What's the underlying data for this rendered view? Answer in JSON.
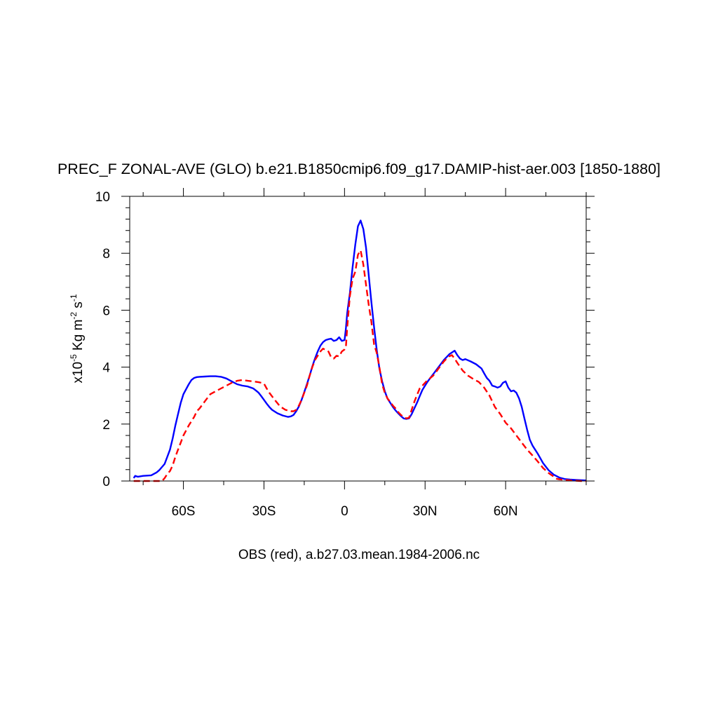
{
  "chart_data": {
    "type": "line",
    "title": "PREC_F ZONAL-AVE (GLO) b.e21.B1850cmip6.f09_g17.DAMIP-hist-aer.003 [1850-1880]",
    "xlabel": "OBS (red), a.b27.03.mean.1984-2006.nc",
    "ylabel": {
      "prefix": "x10",
      "exp1": "-5",
      "unit_a": " Kg m",
      "exp2": "-2",
      "unit_b": " s",
      "exp3": "-1"
    },
    "xlim": [
      -80,
      90
    ],
    "ylim": [
      0,
      10
    ],
    "x_ticks": [
      {
        "value": -60,
        "label": "60S"
      },
      {
        "value": -30,
        "label": "30S"
      },
      {
        "value": 0,
        "label": "0"
      },
      {
        "value": 30,
        "label": "30N"
      },
      {
        "value": 60,
        "label": "60N"
      }
    ],
    "y_ticks": [
      {
        "value": 0,
        "label": "0"
      },
      {
        "value": 2,
        "label": "2"
      },
      {
        "value": 4,
        "label": "4"
      },
      {
        "value": 6,
        "label": "6"
      },
      {
        "value": 8,
        "label": "8"
      },
      {
        "value": 10,
        "label": "10"
      }
    ],
    "grid": false,
    "legend": "none",
    "series": [
      {
        "color": "#0000ff",
        "style": "solid",
        "x": [
          -78.5,
          -78,
          -77,
          -75,
          -72,
          -70,
          -69,
          -67,
          -66,
          -65,
          -64,
          -63,
          -62,
          -61,
          -60,
          -58,
          -57,
          -56,
          -55,
          -54,
          -52,
          -50,
          -48,
          -46,
          -44,
          -42,
          -40,
          -38,
          -36,
          -34,
          -33,
          -32,
          -31,
          -30,
          -29,
          -28,
          -27,
          -25,
          -23,
          -21,
          -20,
          -19,
          -18,
          -17,
          -16,
          -15,
          -14,
          -13,
          -12,
          -11,
          -10,
          -9,
          -8,
          -7,
          -6,
          -5,
          -4,
          -3,
          -2,
          -1,
          0,
          0.5,
          1,
          2,
          3,
          4,
          5,
          6,
          7,
          8,
          9,
          10,
          11,
          12,
          13,
          14,
          15,
          16,
          17,
          18,
          19,
          20,
          21,
          22,
          23,
          24,
          25,
          26,
          27,
          28,
          29,
          30,
          31,
          33,
          35,
          37,
          39,
          41,
          42,
          43,
          44,
          45,
          47,
          49,
          51,
          52,
          53,
          54,
          55,
          56,
          57,
          58,
          59,
          60,
          61,
          62,
          63,
          64,
          65,
          66,
          67,
          68,
          69,
          70,
          72,
          74,
          76,
          78,
          80,
          82,
          84,
          86,
          88,
          90
        ],
        "y": [
          0.1,
          0.18,
          0.15,
          0.18,
          0.2,
          0.3,
          0.38,
          0.6,
          0.85,
          1.1,
          1.5,
          1.95,
          2.35,
          2.75,
          3.05,
          3.4,
          3.55,
          3.62,
          3.65,
          3.66,
          3.67,
          3.68,
          3.68,
          3.66,
          3.6,
          3.5,
          3.4,
          3.35,
          3.32,
          3.25,
          3.18,
          3.1,
          2.98,
          2.85,
          2.72,
          2.6,
          2.5,
          2.38,
          2.3,
          2.25,
          2.27,
          2.32,
          2.45,
          2.62,
          2.85,
          3.12,
          3.4,
          3.7,
          4.02,
          4.3,
          4.55,
          4.75,
          4.88,
          4.95,
          4.98,
          5.0,
          4.92,
          4.95,
          5.05,
          4.92,
          4.95,
          5.35,
          5.9,
          6.6,
          7.5,
          8.3,
          8.95,
          9.15,
          8.85,
          8.2,
          7.25,
          6.3,
          5.4,
          4.6,
          3.95,
          3.5,
          3.15,
          2.9,
          2.75,
          2.6,
          2.48,
          2.38,
          2.28,
          2.2,
          2.18,
          2.2,
          2.35,
          2.55,
          2.75,
          2.98,
          3.2,
          3.35,
          3.5,
          3.75,
          4.0,
          4.25,
          4.45,
          4.58,
          4.42,
          4.3,
          4.25,
          4.28,
          4.2,
          4.1,
          3.95,
          3.78,
          3.62,
          3.52,
          3.35,
          3.32,
          3.28,
          3.32,
          3.45,
          3.5,
          3.28,
          3.15,
          3.18,
          3.1,
          2.9,
          2.6,
          2.2,
          1.8,
          1.45,
          1.25,
          0.95,
          0.62,
          0.38,
          0.22,
          0.12,
          0.07,
          0.05,
          0.04,
          0.03,
          0.02
        ]
      },
      {
        "color": "#ff0000",
        "style": "dashed",
        "x": [
          -78.5,
          -76,
          -74,
          -72,
          -70,
          -68,
          -67,
          -66,
          -65,
          -64,
          -63,
          -62,
          -61,
          -60,
          -58,
          -56,
          -55,
          -54,
          -52,
          -50,
          -48,
          -46,
          -44,
          -42,
          -40,
          -38,
          -36,
          -34,
          -32,
          -31,
          -30,
          -29,
          -28,
          -26,
          -24,
          -22,
          -20,
          -19,
          -18,
          -17,
          -16,
          -15,
          -14,
          -13,
          -12,
          -11,
          -10,
          -9,
          -8,
          -7,
          -6,
          -5,
          -4,
          -3,
          -2,
          -1,
          0,
          0.5,
          1,
          2,
          3,
          4,
          5,
          6,
          7,
          8,
          9,
          10,
          11,
          12,
          13,
          14,
          15,
          16,
          17,
          18,
          19,
          20,
          21,
          22,
          23,
          24,
          25,
          26,
          27,
          28,
          29,
          30,
          31,
          32,
          33,
          34,
          35,
          37,
          38,
          39,
          40,
          41,
          42,
          44,
          46,
          48,
          50,
          52,
          54,
          56,
          58,
          60,
          62,
          64,
          66,
          68,
          70,
          72,
          74,
          76,
          78,
          79,
          80,
          82,
          84,
          86,
          88,
          90
        ],
        "y": [
          0.0,
          0.0,
          0.0,
          0.0,
          0.0,
          0.0,
          0.1,
          0.25,
          0.35,
          0.55,
          0.85,
          1.1,
          1.35,
          1.6,
          1.95,
          2.25,
          2.45,
          2.55,
          2.8,
          3.05,
          3.15,
          3.25,
          3.35,
          3.45,
          3.52,
          3.55,
          3.52,
          3.5,
          3.47,
          3.45,
          3.42,
          3.25,
          3.1,
          2.85,
          2.62,
          2.5,
          2.45,
          2.45,
          2.5,
          2.65,
          2.85,
          3.1,
          3.35,
          3.7,
          4.0,
          4.25,
          4.4,
          4.55,
          4.65,
          4.6,
          4.55,
          4.35,
          4.3,
          4.4,
          4.38,
          4.55,
          4.62,
          4.7,
          5.4,
          6.5,
          7.1,
          7.35,
          7.95,
          8.1,
          7.6,
          6.9,
          6.2,
          5.6,
          4.8,
          4.5,
          4.0,
          3.4,
          3.1,
          2.9,
          2.78,
          2.65,
          2.55,
          2.42,
          2.32,
          2.25,
          2.2,
          2.22,
          2.5,
          2.78,
          3.02,
          3.25,
          3.35,
          3.45,
          3.55,
          3.62,
          3.7,
          3.82,
          3.95,
          4.2,
          4.3,
          4.38,
          4.42,
          4.3,
          4.15,
          3.88,
          3.7,
          3.58,
          3.48,
          3.28,
          3.0,
          2.6,
          2.35,
          2.05,
          1.85,
          1.6,
          1.35,
          1.1,
          0.9,
          0.68,
          0.45,
          0.28,
          0.15,
          0.08,
          0.06,
          0.04,
          0.02,
          0.01,
          0.0,
          0.0
        ]
      }
    ]
  }
}
